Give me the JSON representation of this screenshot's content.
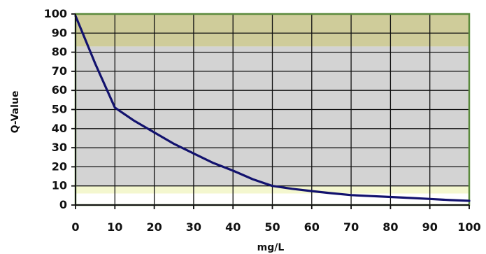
{
  "chart_data": {
    "type": "line",
    "title": "",
    "xlabel": "mg/L",
    "ylabel": "Q-Value",
    "xlim": [
      0,
      100
    ],
    "ylim": [
      0,
      100
    ],
    "x_ticks": [
      "0",
      "10",
      "20",
      "30",
      "40",
      "50",
      "60",
      "70",
      "80",
      "90",
      "100"
    ],
    "y_ticks": [
      "100",
      "90",
      "80",
      "70",
      "60",
      "50",
      "40",
      "30",
      "20",
      "10",
      "0"
    ],
    "grid": true,
    "legend": "none",
    "bands": [
      {
        "from": 83,
        "to": 100,
        "color": "#cfcc9a"
      },
      {
        "from": 10,
        "to": 83,
        "color": "#d3d3d3"
      },
      {
        "from": 6,
        "to": 10,
        "color": "#f4f7cf"
      },
      {
        "from": 0,
        "to": 6,
        "color": "#ffffff"
      }
    ],
    "series": [
      {
        "x": [
          0,
          2,
          5,
          10,
          15,
          20,
          25,
          30,
          35,
          40,
          45,
          50,
          55,
          60,
          65,
          70,
          75,
          80,
          85,
          90,
          95,
          100
        ],
        "y": [
          99,
          89,
          74,
          51,
          44,
          38,
          32,
          27,
          22,
          18,
          13.5,
          10,
          8.5,
          7.3,
          6.2,
          5.2,
          4.7,
          4.2,
          3.7,
          3.2,
          2.6,
          2.2
        ],
        "color": "#12126e"
      }
    ],
    "colors": {
      "frame": "#5a8a3c",
      "grid": "#111111",
      "axis": "#111111"
    }
  }
}
